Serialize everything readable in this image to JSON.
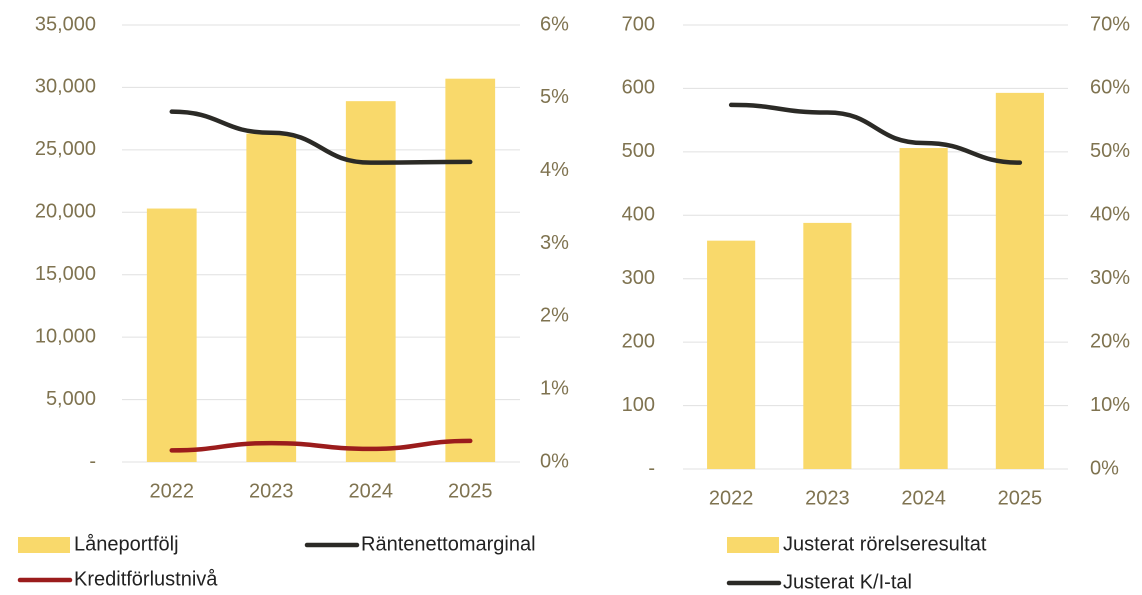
{
  "chart_data": [
    {
      "type": "bar_line",
      "categories": [
        "2022",
        "2023",
        "2024",
        "2025"
      ],
      "series": [
        {
          "name": "Låneportfölj",
          "color": "#f9d96b",
          "type": "bar",
          "values": [
            20300,
            26300,
            28900,
            30700
          ]
        },
        {
          "name": "Räntenettomarginal",
          "color": "#2b2a26",
          "type": "line",
          "axis": "y2",
          "values": [
            4.81,
            4.52,
            4.11,
            4.12
          ]
        },
        {
          "name": "Kreditförlustnivå",
          "color": "#9b1c1c",
          "type": "line",
          "axis": "y2",
          "values": [
            0.16,
            0.26,
            0.18,
            0.29
          ]
        }
      ],
      "ylim": [
        0,
        35000
      ],
      "yticks": [
        {
          "value": 0,
          "label": "-"
        },
        {
          "value": 5000,
          "label": "5,000"
        },
        {
          "value": 10000,
          "label": "10,000"
        },
        {
          "value": 15000,
          "label": "15,000"
        },
        {
          "value": 20000,
          "label": "20,000"
        },
        {
          "value": 25000,
          "label": "25,000"
        },
        {
          "value": 30000,
          "label": "30,000"
        },
        {
          "value": 35000,
          "label": "35,000"
        }
      ],
      "y2lim": [
        0,
        6
      ],
      "y2ticks": [
        {
          "value": 0,
          "label": "0%"
        },
        {
          "value": 1,
          "label": "1%"
        },
        {
          "value": 2,
          "label": "2%"
        },
        {
          "value": 3,
          "label": "3%"
        },
        {
          "value": 4,
          "label": "4%"
        },
        {
          "value": 5,
          "label": "5%"
        },
        {
          "value": 6,
          "label": "6%"
        }
      ],
      "grid": true
    },
    {
      "type": "bar_line",
      "categories": [
        "2022",
        "2023",
        "2024",
        "2025"
      ],
      "series": [
        {
          "name": "Justerat rörelseresultat",
          "color": "#f9d96b",
          "type": "bar",
          "values": [
            360,
            388,
            506,
            593
          ]
        },
        {
          "name": "Justerat K/I-tal",
          "color": "#2b2a26",
          "type": "line",
          "axis": "y2",
          "values": [
            57.4,
            56.2,
            51.4,
            48.3
          ]
        }
      ],
      "ylim": [
        0,
        700
      ],
      "yticks": [
        {
          "value": 0,
          "label": "-"
        },
        100,
        200,
        300,
        400,
        500,
        600,
        700
      ],
      "y2lim": [
        0,
        70
      ],
      "y2ticks": [
        {
          "value": 0,
          "label": "0%"
        },
        {
          "value": 10,
          "label": "10%"
        },
        {
          "value": 20,
          "label": "20%"
        },
        {
          "value": 30,
          "label": "30%"
        },
        {
          "value": 40,
          "label": "40%"
        },
        {
          "value": 50,
          "label": "50%"
        },
        {
          "value": 60,
          "label": "60%"
        },
        {
          "value": 70,
          "label": "70%"
        }
      ],
      "grid": true
    }
  ]
}
